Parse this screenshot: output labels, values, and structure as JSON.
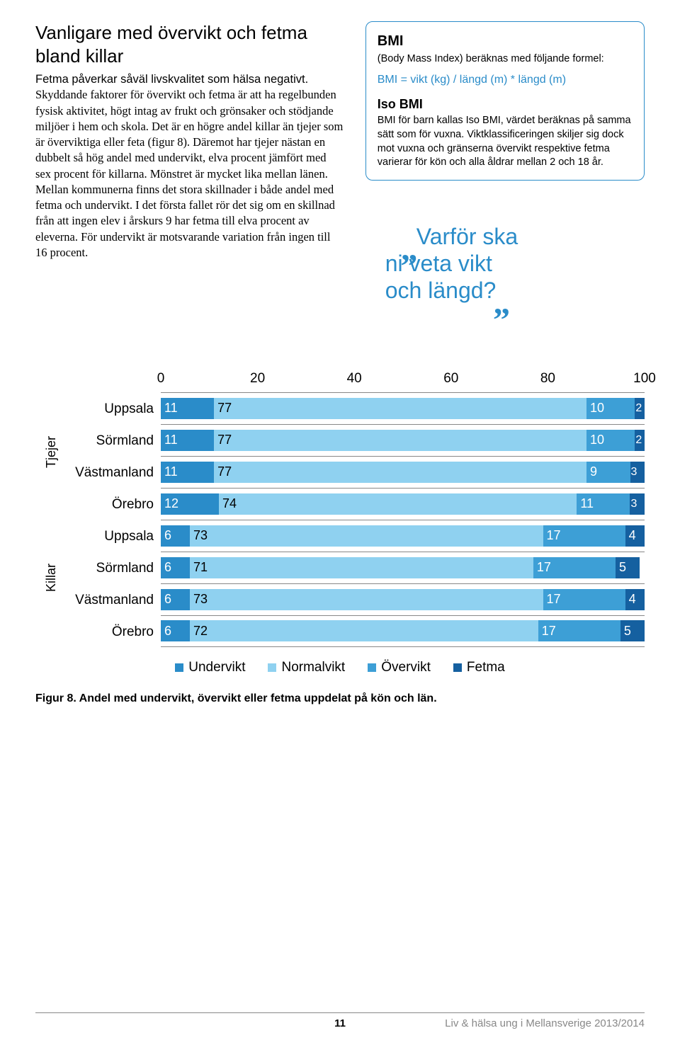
{
  "heading": "Vanligare med övervikt och fetma bland killar",
  "lead": "Fetma påverkar såväl livskvalitet som hälsa negativt.",
  "body": "Skyddande faktorer för övervikt och fetma är att ha regelbunden fysisk aktivitet, högt intag av frukt och grönsaker och stödjande miljöer i hem och skola. Det är en högre andel killar än tjejer som är överviktiga eller feta (figur 8). Däremot har tjejer nästan en dubbelt så hög andel med undervikt, elva procent jämfört med sex procent för killarna. Mönstret är mycket lika mellan länen. Mellan kommunerna finns det stora skillnader i både andel med fetma och undervikt. I det första fallet rör det sig om en skillnad från att ingen elev i årskurs 9 har fetma till elva procent av eleverna. För undervikt är motsvarande variation från ingen till 16 procent.",
  "bmi": {
    "title": "BMI",
    "sub": "(Body Mass Index) beräknas med följande formel:",
    "formula": "BMI = vikt (kg) / längd (m) * längd (m)",
    "iso_title": "Iso BMI",
    "iso_text": "BMI för barn kallas Iso BMI, värdet beräknas på samma sätt som för vuxna. Viktklassificeringen skiljer sig dock mot vuxna och gränserna övervikt respektive fetma varierar för kön och alla åldrar mellan 2 och 18 år."
  },
  "pull_quote": {
    "line1": "Varför ska",
    "line2": "ni veta vikt",
    "line3": "och längd?"
  },
  "chart": {
    "x_ticks": [
      "0",
      "20",
      "40",
      "60",
      "80",
      "100"
    ],
    "groups": [
      {
        "label": "Tjejer",
        "rows": [
          "Uppsala",
          "Sörmland",
          "Västmanland",
          "Örebro"
        ]
      },
      {
        "label": "Killar",
        "rows": [
          "Uppsala",
          "Sörmland",
          "Västmanland",
          "Örebro"
        ]
      }
    ],
    "series": [
      "Undervikt",
      "Normalvikt",
      "Övervikt",
      "Fetma"
    ],
    "colors": [
      "#2a8cc9",
      "#8fd1f0",
      "#3d9fd6",
      "#1560a0"
    ],
    "text_colors": [
      "#ffffff",
      "#000000",
      "#ffffff",
      "#ffffff"
    ],
    "data": [
      [
        11,
        77,
        10,
        2
      ],
      [
        11,
        77,
        10,
        2
      ],
      [
        11,
        77,
        9,
        3
      ],
      [
        12,
        74,
        11,
        3
      ],
      [
        6,
        73,
        17,
        4
      ],
      [
        6,
        71,
        17,
        5
      ],
      [
        6,
        73,
        17,
        4
      ],
      [
        6,
        72,
        17,
        5
      ]
    ],
    "caption": "Figur 8. Andel med undervikt, övervikt eller fetma uppdelat på kön och län."
  },
  "footer": {
    "page": "11",
    "source": "Liv &  hälsa ung i Mellansverige 2013/2014"
  }
}
